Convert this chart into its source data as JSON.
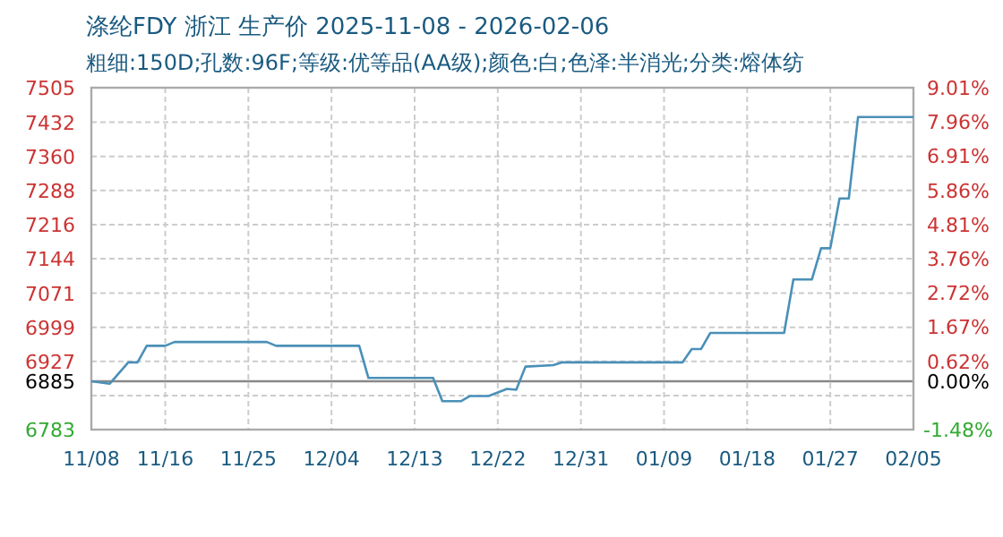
{
  "chart_data": {
    "type": "line",
    "title": "涤纶FDY 浙江 生产价 2025-11-08 - 2026-02-06",
    "subtitle": "粗细:150D;孔数:96F;等级:优等品(AA级);颜色:白;色泽:半消光;分类:熔体纺",
    "xlim": [
      "2025-11-08",
      "2026-02-05"
    ],
    "xticks": [
      {
        "value": "2025-11-08",
        "label": "11/08"
      },
      {
        "value": "2025-11-16",
        "label": "11/16"
      },
      {
        "value": "2025-11-25",
        "label": "11/25"
      },
      {
        "value": "2025-12-04",
        "label": "12/04"
      },
      {
        "value": "2025-12-13",
        "label": "12/13"
      },
      {
        "value": "2025-12-22",
        "label": "12/22"
      },
      {
        "value": "2025-12-31",
        "label": "12/31"
      },
      {
        "value": "2026-01-09",
        "label": "01/09"
      },
      {
        "value": "2026-01-18",
        "label": "01/18"
      },
      {
        "value": "2026-01-27",
        "label": "01/27"
      },
      {
        "value": "2026-02-05",
        "label": "02/05"
      }
    ],
    "ylim": [
      6783,
      7505
    ],
    "yticks": [
      6783,
      {
        "value": 6855,
        "label": null
      },
      6885,
      6927,
      6999,
      7071,
      7144,
      7216,
      7288,
      7360,
      7432,
      7505
    ],
    "y2lim": [
      -1.48,
      9.01
    ],
    "y2ticks": [
      {
        "value": -1.48,
        "label": "-1.48%"
      },
      {
        "value": 0,
        "label": "0.00%"
      },
      {
        "value": 0.62,
        "label": "0.62%"
      },
      {
        "value": 1.67,
        "label": "1.67%"
      },
      {
        "value": 2.72,
        "label": "2.72%"
      },
      {
        "value": 3.76,
        "label": "3.76%"
      },
      {
        "value": 4.81,
        "label": "4.81%"
      },
      {
        "value": 5.86,
        "label": "5.86%"
      },
      {
        "value": 6.91,
        "label": "6.91%"
      },
      {
        "value": 7.96,
        "label": "7.96%"
      },
      {
        "value": 9.01,
        "label": "9.01%"
      }
    ],
    "grid": true,
    "ref_lines": [
      {
        "axis": "y",
        "value": 6885,
        "color": "#888888"
      }
    ],
    "series": [
      {
        "color": "#4a90b8",
        "x": [
          "2025-11-08",
          "2025-11-10",
          "2025-11-12",
          "2025-11-13",
          "2025-11-14",
          "2025-11-16",
          "2025-11-17",
          "2025-11-27",
          "2025-11-28",
          "2025-12-07",
          "2025-12-08",
          "2025-12-15",
          "2025-12-16",
          "2025-12-18",
          "2025-12-19",
          "2025-12-21",
          "2025-12-23",
          "2025-12-24",
          "2025-12-25",
          "2025-12-28",
          "2025-12-29",
          "2026-01-11",
          "2026-01-12",
          "2026-01-13",
          "2026-01-14",
          "2026-01-22",
          "2026-01-23",
          "2026-01-25",
          "2026-01-26",
          "2026-01-27",
          "2026-01-28",
          "2026-01-29",
          "2026-01-30",
          "2026-02-05"
        ],
        "values": [
          6885,
          6880,
          6925,
          6925,
          6960,
          6960,
          6968,
          6968,
          6960,
          6960,
          6892,
          6892,
          6843,
          6843,
          6854,
          6854,
          6869,
          6867,
          6916,
          6919,
          6925,
          6925,
          6953,
          6953,
          6987,
          6987,
          7100,
          7100,
          7166,
          7166,
          7271,
          7271,
          7443,
          7443
        ]
      }
    ]
  }
}
